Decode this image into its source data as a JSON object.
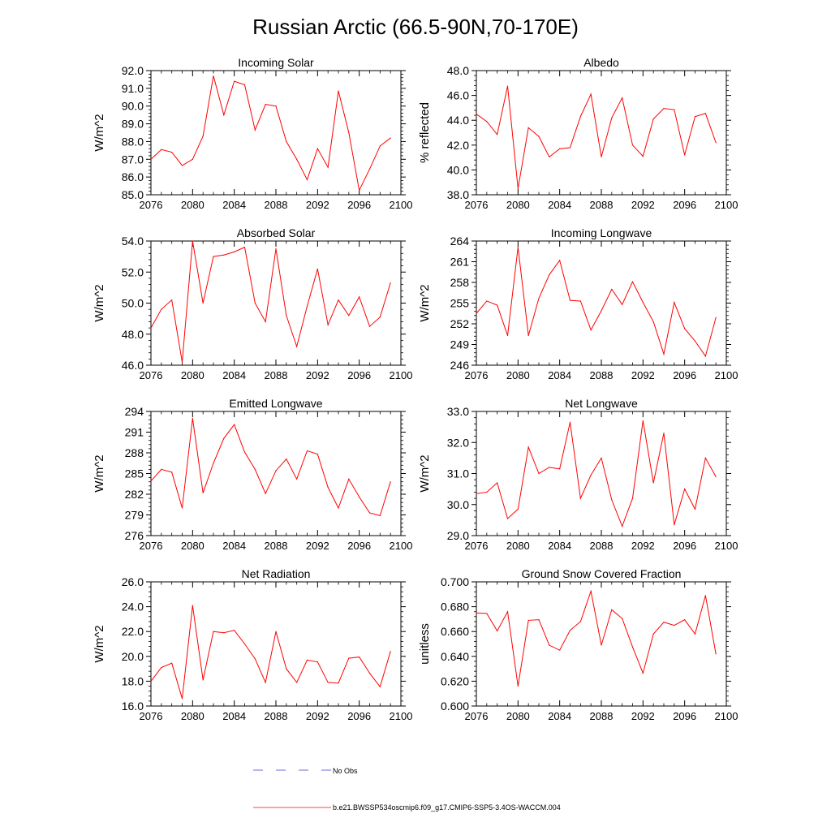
{
  "figure_title": "Russian Arctic (66.5-90N,70-170E)",
  "legend": {
    "obs_label": "No Obs",
    "model_label": "b.e21.BWSSP534oscmip6.f09_g17.CMIP6-SSP5-3.4OS-WACCM.004",
    "obs_color": "#3b3bd0",
    "model_color": "#ff0000"
  },
  "chart_data": [
    {
      "type": "line",
      "title": "Incoming Solar",
      "xlabel": "",
      "ylabel": "W/m^2",
      "xlim": [
        2076,
        2100
      ],
      "ylim": [
        85,
        92
      ],
      "x_ticks": [
        2076,
        2080,
        2084,
        2088,
        2092,
        2096,
        2100
      ],
      "y_ticks": [
        85,
        86,
        87,
        88,
        89,
        90,
        91,
        92
      ],
      "y_tick_labels": [
        "85.0",
        "86.0",
        "87.0",
        "88.0",
        "89.0",
        "90.0",
        "91.0",
        "92.0"
      ],
      "series": [
        {
          "name": "b.e21.BWSSP534oscmip6.f09_g17.CMIP6-SSP5-3.4OS-WACCM.004",
          "color": "#ff0000",
          "x": [
            2076,
            2077,
            2078,
            2079,
            2080,
            2081,
            2082,
            2083,
            2084,
            2085,
            2086,
            2087,
            2088,
            2089,
            2090,
            2091,
            2092,
            2093,
            2094,
            2095,
            2096,
            2097,
            2098,
            2099
          ],
          "values": [
            87.0,
            87.55,
            87.4,
            86.65,
            87.0,
            88.3,
            91.7,
            89.5,
            91.4,
            91.2,
            88.65,
            90.1,
            90.0,
            88.0,
            87.0,
            85.85,
            87.6,
            86.55,
            90.85,
            88.5,
            85.25,
            86.45,
            87.75,
            88.2
          ]
        }
      ]
    },
    {
      "type": "line",
      "title": "Albedo",
      "xlabel": "",
      "ylabel": "% reflected",
      "xlim": [
        2076,
        2100
      ],
      "ylim": [
        38,
        48
      ],
      "x_ticks": [
        2076,
        2080,
        2084,
        2088,
        2092,
        2096,
        2100
      ],
      "y_ticks": [
        38,
        40,
        42,
        44,
        46,
        48
      ],
      "y_tick_labels": [
        "38.0",
        "40.0",
        "42.0",
        "44.0",
        "46.0",
        "48.0"
      ],
      "series": [
        {
          "name": "b.e21.BWSSP534oscmip6.f09_g17.CMIP6-SSP5-3.4OS-WACCM.004",
          "color": "#ff0000",
          "x": [
            2076,
            2077,
            2078,
            2079,
            2080,
            2081,
            2082,
            2083,
            2084,
            2085,
            2086,
            2087,
            2088,
            2089,
            2090,
            2091,
            2092,
            2093,
            2094,
            2095,
            2096,
            2097,
            2098,
            2099
          ],
          "values": [
            44.5,
            43.9,
            42.85,
            46.75,
            38.5,
            43.4,
            42.7,
            41.05,
            41.7,
            41.8,
            44.3,
            46.1,
            41.05,
            44.2,
            45.8,
            42.0,
            41.1,
            44.1,
            44.95,
            44.85,
            41.2,
            44.3,
            44.55,
            42.2
          ]
        }
      ]
    },
    {
      "type": "line",
      "title": "Absorbed Solar",
      "xlabel": "",
      "ylabel": "W/m^2",
      "xlim": [
        2076,
        2100
      ],
      "ylim": [
        46,
        54
      ],
      "x_ticks": [
        2076,
        2080,
        2084,
        2088,
        2092,
        2096,
        2100
      ],
      "y_ticks": [
        46,
        48,
        50,
        52,
        54
      ],
      "y_tick_labels": [
        "46.0",
        "48.0",
        "50.0",
        "52.0",
        "54.0"
      ],
      "series": [
        {
          "name": "b.e21.BWSSP534oscmip6.f09_g17.CMIP6-SSP5-3.4OS-WACCM.004",
          "color": "#ff0000",
          "x": [
            2076,
            2077,
            2078,
            2079,
            2080,
            2081,
            2082,
            2083,
            2084,
            2085,
            2086,
            2087,
            2088,
            2089,
            2090,
            2091,
            2092,
            2093,
            2094,
            2095,
            2096,
            2097,
            2098,
            2099
          ],
          "values": [
            48.4,
            49.6,
            50.2,
            46.2,
            54.0,
            50.0,
            53.0,
            53.1,
            53.3,
            53.6,
            50.0,
            48.8,
            53.5,
            49.2,
            47.2,
            49.8,
            52.2,
            48.6,
            50.2,
            49.2,
            50.4,
            48.5,
            49.1,
            51.3
          ]
        }
      ]
    },
    {
      "type": "line",
      "title": "Incoming Longwave",
      "xlabel": "",
      "ylabel": "W/m^2",
      "xlim": [
        2076,
        2100
      ],
      "ylim": [
        246,
        264
      ],
      "x_ticks": [
        2076,
        2080,
        2084,
        2088,
        2092,
        2096,
        2100
      ],
      "y_ticks": [
        246,
        249,
        252,
        255,
        258,
        261,
        264
      ],
      "y_tick_labels": [
        "246",
        "249",
        "252",
        "255",
        "258",
        "261",
        "264"
      ],
      "series": [
        {
          "name": "b.e21.BWSSP534oscmip6.f09_g17.CMIP6-SSP5-3.4OS-WACCM.004",
          "color": "#ff0000",
          "x": [
            2076,
            2077,
            2078,
            2079,
            2080,
            2081,
            2082,
            2083,
            2084,
            2085,
            2086,
            2087,
            2088,
            2089,
            2090,
            2091,
            2092,
            2093,
            2094,
            2095,
            2096,
            2097,
            2098,
            2099
          ],
          "values": [
            253.5,
            255.3,
            254.7,
            250.3,
            263.1,
            250.3,
            255.7,
            259.1,
            261.2,
            255.4,
            255.3,
            251.1,
            253.9,
            257.0,
            254.8,
            258.1,
            255.1,
            252.3,
            247.6,
            255.1,
            251.3,
            249.5,
            247.3,
            252.9
          ]
        }
      ]
    },
    {
      "type": "line",
      "title": "Emitted Longwave",
      "xlabel": "",
      "ylabel": "W/m^2",
      "xlim": [
        2076,
        2100
      ],
      "ylim": [
        276,
        294
      ],
      "x_ticks": [
        2076,
        2080,
        2084,
        2088,
        2092,
        2096,
        2100
      ],
      "y_ticks": [
        276,
        279,
        282,
        285,
        288,
        291,
        294
      ],
      "y_tick_labels": [
        "276",
        "279",
        "282",
        "285",
        "288",
        "291",
        "294"
      ],
      "series": [
        {
          "name": "b.e21.BWSSP534oscmip6.f09_g17.CMIP6-SSP5-3.4OS-WACCM.004",
          "color": "#ff0000",
          "x": [
            2076,
            2077,
            2078,
            2079,
            2080,
            2081,
            2082,
            2083,
            2084,
            2085,
            2086,
            2087,
            2088,
            2089,
            2090,
            2091,
            2092,
            2093,
            2094,
            2095,
            2096,
            2097,
            2098,
            2099
          ],
          "values": [
            283.9,
            285.6,
            285.2,
            280.0,
            293.0,
            282.2,
            286.5,
            290.1,
            292.1,
            288.1,
            285.6,
            282.1,
            285.4,
            287.1,
            284.2,
            288.3,
            287.8,
            283.0,
            280.0,
            284.2,
            281.6,
            279.3,
            278.9,
            283.8
          ]
        }
      ]
    },
    {
      "type": "line",
      "title": "Net Longwave",
      "xlabel": "",
      "ylabel": "W/m^2",
      "xlim": [
        2076,
        2100
      ],
      "ylim": [
        29,
        33
      ],
      "x_ticks": [
        2076,
        2080,
        2084,
        2088,
        2092,
        2096,
        2100
      ],
      "y_ticks": [
        29,
        30,
        31,
        32,
        33
      ],
      "y_tick_labels": [
        "29.0",
        "30.0",
        "31.0",
        "32.0",
        "33.0"
      ],
      "series": [
        {
          "name": "b.e21.BWSSP534oscmip6.f09_g17.CMIP6-SSP5-3.4OS-WACCM.004",
          "color": "#ff0000",
          "x": [
            2076,
            2077,
            2078,
            2079,
            2080,
            2081,
            2082,
            2083,
            2084,
            2085,
            2086,
            2087,
            2088,
            2089,
            2090,
            2091,
            2092,
            2093,
            2094,
            2095,
            2096,
            2097,
            2098,
            2099
          ],
          "values": [
            30.35,
            30.4,
            30.7,
            29.55,
            29.85,
            31.85,
            31.0,
            31.2,
            31.15,
            32.65,
            30.2,
            30.95,
            31.5,
            30.15,
            29.3,
            30.2,
            32.7,
            30.7,
            32.3,
            29.35,
            30.5,
            29.85,
            31.5,
            30.9
          ]
        }
      ]
    },
    {
      "type": "line",
      "title": "Net Radiation",
      "xlabel": "",
      "ylabel": "W/m^2",
      "xlim": [
        2076,
        2100
      ],
      "ylim": [
        16,
        26
      ],
      "x_ticks": [
        2076,
        2080,
        2084,
        2088,
        2092,
        2096,
        2100
      ],
      "y_ticks": [
        16,
        18,
        20,
        22,
        24,
        26
      ],
      "y_tick_labels": [
        "16.0",
        "18.0",
        "20.0",
        "22.0",
        "24.0",
        "26.0"
      ],
      "series": [
        {
          "name": "b.e21.BWSSP534oscmip6.f09_g17.CMIP6-SSP5-3.4OS-WACCM.004",
          "color": "#ff0000",
          "x": [
            2076,
            2077,
            2078,
            2079,
            2080,
            2081,
            2082,
            2083,
            2084,
            2085,
            2086,
            2087,
            2088,
            2089,
            2090,
            2091,
            2092,
            2093,
            2094,
            2095,
            2096,
            2097,
            2098,
            2099
          ],
          "values": [
            18.0,
            19.1,
            19.45,
            16.6,
            24.1,
            18.1,
            22.0,
            21.9,
            22.1,
            21.0,
            19.8,
            17.9,
            22.0,
            19.0,
            17.9,
            19.7,
            19.55,
            17.9,
            17.85,
            19.85,
            19.95,
            18.65,
            17.55,
            20.4
          ]
        }
      ]
    },
    {
      "type": "line",
      "title": "Ground Snow Covered Fraction",
      "xlabel": "",
      "ylabel": "unitless",
      "xlim": [
        2076,
        2100
      ],
      "ylim": [
        0.6,
        0.7
      ],
      "x_ticks": [
        2076,
        2080,
        2084,
        2088,
        2092,
        2096,
        2100
      ],
      "y_ticks": [
        0.6,
        0.62,
        0.64,
        0.66,
        0.68,
        0.7
      ],
      "y_tick_labels": [
        "0.600",
        "0.620",
        "0.640",
        "0.660",
        "0.680",
        "0.700"
      ],
      "series": [
        {
          "name": "b.e21.BWSSP534oscmip6.f09_g17.CMIP6-SSP5-3.4OS-WACCM.004",
          "color": "#ff0000",
          "x": [
            2076,
            2077,
            2078,
            2079,
            2080,
            2081,
            2082,
            2083,
            2084,
            2085,
            2086,
            2087,
            2088,
            2089,
            2090,
            2091,
            2092,
            2093,
            2094,
            2095,
            2096,
            2097,
            2098,
            2099
          ],
          "values": [
            0.675,
            0.6745,
            0.6605,
            0.676,
            0.616,
            0.669,
            0.6695,
            0.649,
            0.645,
            0.661,
            0.668,
            0.6925,
            0.649,
            0.6775,
            0.6705,
            0.6475,
            0.6265,
            0.658,
            0.6675,
            0.665,
            0.6695,
            0.658,
            0.689,
            0.642
          ]
        }
      ]
    }
  ]
}
